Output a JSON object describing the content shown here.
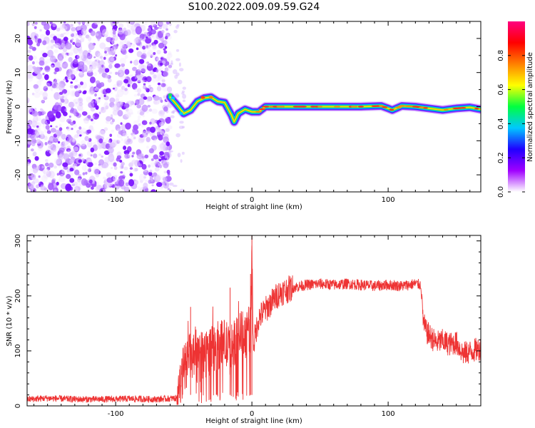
{
  "title": "S100.2022.009.09.59.G24",
  "chart_data": [
    {
      "type": "heatmap",
      "xlabel": "Height of straight line (km)",
      "ylabel": "Frequency (Hz)",
      "xlim": [
        -165,
        168
      ],
      "ylim": [
        -25,
        25
      ],
      "x_ticks": [
        -100,
        0,
        100
      ],
      "y_ticks": [
        -20,
        -10,
        0,
        10,
        20
      ],
      "colorbar": {
        "label": "Normalized spectral amplitude",
        "range": [
          0.0,
          1.0
        ],
        "ticks": [
          "0.0",
          "0.2",
          "0.4",
          "0.6",
          "0.8"
        ],
        "colormap": [
          "#ffffff",
          "#a000ff",
          "#2000ff",
          "#00c8ff",
          "#00ff40",
          "#ffff00",
          "#ff8000",
          "#ff0000",
          "#ff0080"
        ]
      },
      "noise_region_x": [
        -165,
        -60
      ],
      "ridge": {
        "x": [
          -60,
          -55,
          -50,
          -45,
          -40,
          -35,
          -30,
          -25,
          -20,
          -15,
          -13,
          -10,
          -5,
          0,
          5,
          10,
          20,
          40,
          60,
          80,
          95,
          100,
          103,
          110,
          120,
          130,
          140,
          150,
          160,
          168
        ],
        "y": [
          2.8,
          0.5,
          -2.0,
          -1.0,
          1.5,
          2.5,
          2.8,
          1.5,
          1.2,
          -2.5,
          -4.5,
          -2.0,
          -0.8,
          -1.5,
          -1.5,
          0.0,
          0.0,
          0.0,
          0.0,
          0.0,
          0.2,
          -0.5,
          -1.0,
          0.2,
          0.0,
          -0.5,
          -1.0,
          -0.5,
          -0.2,
          -0.8
        ]
      }
    },
    {
      "type": "line",
      "xlabel": "Height of straight line (km)",
      "ylabel": "SNR (10 * v/v)",
      "xlim": [
        -165,
        168
      ],
      "ylim": [
        0,
        310
      ],
      "x_ticks": [
        -100,
        0,
        100
      ],
      "y_ticks": [
        0,
        100,
        200,
        300
      ],
      "color": "#ee3333",
      "series": [
        {
          "x": [
            -165,
            -150,
            -130,
            -110,
            -90,
            -70,
            -55,
            -52,
            -50,
            -45,
            -40,
            -35,
            -30,
            -25,
            -20,
            -16,
            -10,
            -5,
            -1,
            0,
            1,
            5,
            10,
            15,
            20,
            25,
            30,
            40,
            50,
            60,
            70,
            80,
            90,
            100,
            110,
            120,
            124,
            126,
            128,
            135,
            140,
            145,
            150,
            155,
            160,
            168
          ],
          "y": [
            12,
            14,
            12,
            12,
            13,
            12,
            14,
            40,
            70,
            90,
            80,
            95,
            100,
            110,
            115,
            100,
            130,
            130,
            140,
            290,
            110,
            160,
            175,
            190,
            205,
            210,
            215,
            220,
            222,
            220,
            222,
            220,
            218,
            220,
            218,
            222,
            220,
            150,
            135,
            115,
            118,
            112,
            115,
            95,
            98,
            105
          ]
        }
      ]
    }
  ]
}
